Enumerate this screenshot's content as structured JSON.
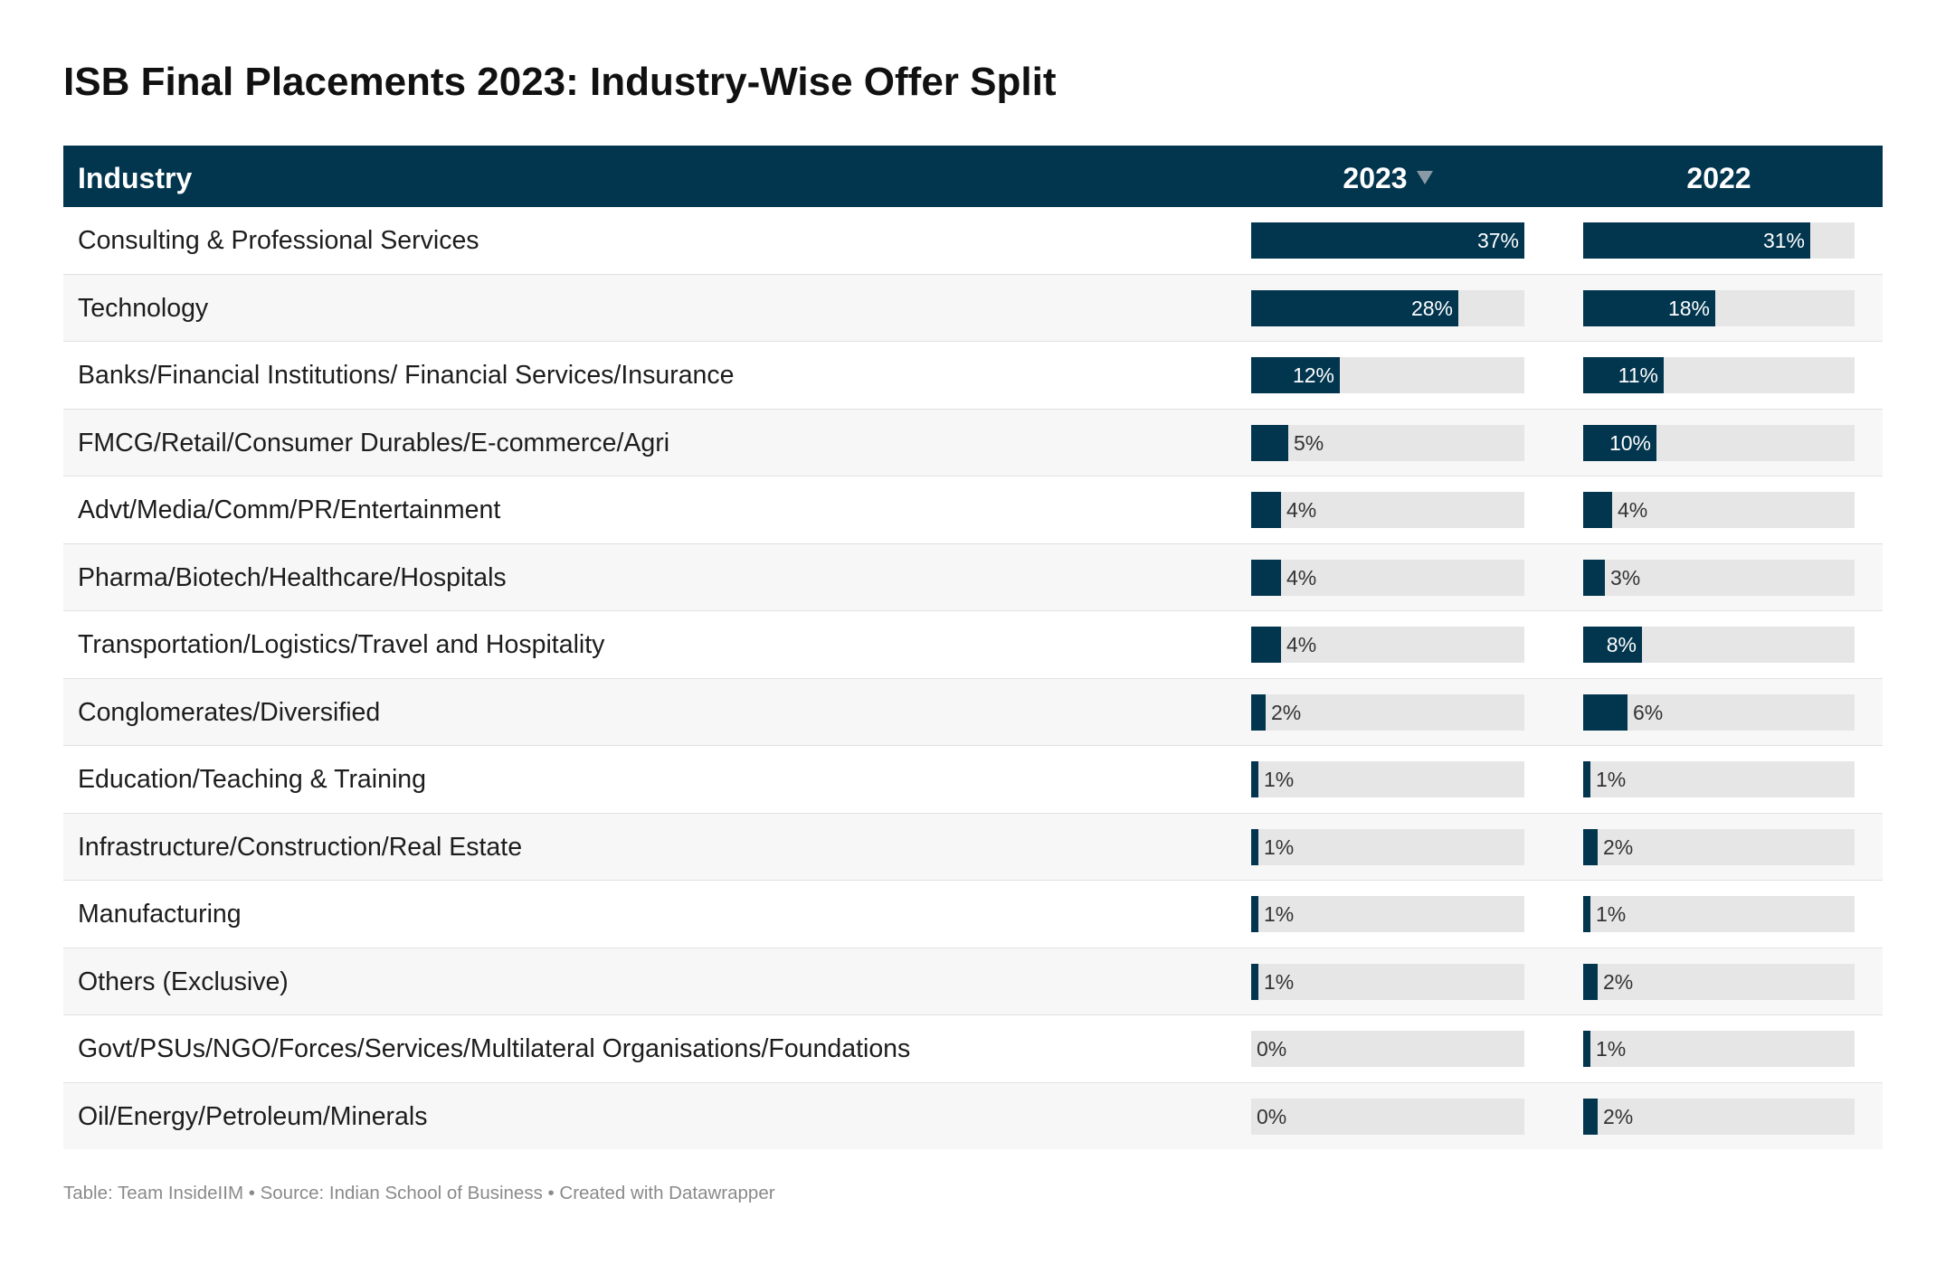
{
  "title": "ISB Final Placements 2023: Industry-Wise Offer Split",
  "header": {
    "industry": "Industry",
    "col_2023": "2023",
    "col_2022": "2022",
    "sort_icon": "sort-descending-icon"
  },
  "colors": {
    "bar": "#02364f",
    "track": "#e6e6e6",
    "header_bg": "#02364f"
  },
  "chart_data": {
    "type": "table",
    "columns": [
      "Industry",
      "2023",
      "2022"
    ],
    "sorted_by": "2023",
    "sort_order": "descending",
    "bar_max": 37,
    "rows": [
      {
        "industry": "Consulting & Professional Services",
        "v2023": 37,
        "l2023": "37%",
        "v2022": 31,
        "l2022": "31%"
      },
      {
        "industry": "Technology",
        "v2023": 28,
        "l2023": "28%",
        "v2022": 18,
        "l2022": "18%"
      },
      {
        "industry": "Banks/Financial Institutions/ Financial Services/Insurance",
        "v2023": 12,
        "l2023": "12%",
        "v2022": 11,
        "l2022": "11%"
      },
      {
        "industry": "FMCG/Retail/Consumer Durables/E-commerce/Agri",
        "v2023": 5,
        "l2023": "5%",
        "v2022": 10,
        "l2022": "10%"
      },
      {
        "industry": "Advt/Media/Comm/PR/Entertainment",
        "v2023": 4,
        "l2023": "4%",
        "v2022": 4,
        "l2022": "4%"
      },
      {
        "industry": "Pharma/Biotech/Healthcare/Hospitals",
        "v2023": 4,
        "l2023": "4%",
        "v2022": 3,
        "l2022": "3%"
      },
      {
        "industry": "Transportation/Logistics/Travel and Hospitality",
        "v2023": 4,
        "l2023": "4%",
        "v2022": 8,
        "l2022": "8%"
      },
      {
        "industry": "Conglomerates/Diversified",
        "v2023": 2,
        "l2023": "2%",
        "v2022": 6,
        "l2022": "6%"
      },
      {
        "industry": "Education/Teaching & Training",
        "v2023": 1,
        "l2023": "1%",
        "v2022": 1,
        "l2022": "1%"
      },
      {
        "industry": "Infrastructure/Construction/Real Estate",
        "v2023": 1,
        "l2023": "1%",
        "v2022": 2,
        "l2022": "2%"
      },
      {
        "industry": "Manufacturing",
        "v2023": 1,
        "l2023": "1%",
        "v2022": 1,
        "l2022": "1%"
      },
      {
        "industry": "Others (Exclusive)",
        "v2023": 1,
        "l2023": "1%",
        "v2022": 2,
        "l2022": "2%"
      },
      {
        "industry": "Govt/PSUs/NGO/Forces/Services/Multilateral Organisations/Foundations",
        "v2023": 0,
        "l2023": "0%",
        "v2022": 1,
        "l2022": "1%"
      },
      {
        "industry": "Oil/Energy/Petroleum/Minerals",
        "v2023": 0,
        "l2023": "0%",
        "v2022": 2,
        "l2022": "2%"
      }
    ]
  },
  "footer": "Table: Team InsideIIM • Source: Indian School of Business • Created with Datawrapper"
}
